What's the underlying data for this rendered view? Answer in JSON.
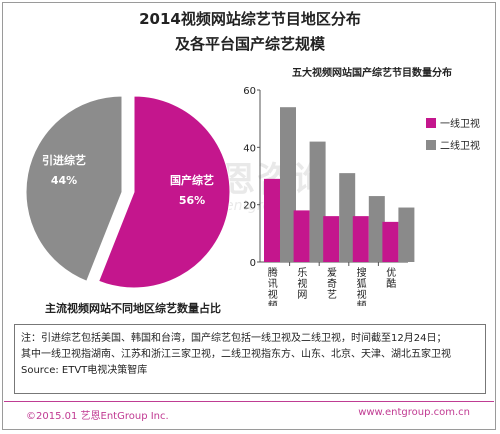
{
  "title_line1": "2014视频网站综艺节目地区分布",
  "title_line2": "及各平台国产综艺规模",
  "watermark": {
    "main": "艺恩咨询",
    "sub": "entgroup"
  },
  "colors": {
    "magenta": "#c4168d",
    "gray": "#8a8a8a",
    "pie_gray": "#8c8c8c",
    "brand": "#c03a92"
  },
  "chart_data": [
    {
      "type": "pie",
      "caption": "主流视频网站不同地区综艺数量占比",
      "slices": [
        {
          "name": "国产综艺",
          "percent": "56%",
          "value": 56,
          "color": "#c4168d"
        },
        {
          "name": "引进综艺",
          "percent": "44%",
          "value": 44,
          "color": "#8c8c8c"
        }
      ]
    },
    {
      "type": "bar",
      "title": "五大视频网站国产综艺节目数量分布",
      "categories": [
        "腾讯视频",
        "乐视网",
        "爱奇艺",
        "搜狐视频",
        "优酷"
      ],
      "series": [
        {
          "name": "一线卫视",
          "values": [
            29,
            18,
            16,
            16,
            14
          ],
          "color": "#c4168d"
        },
        {
          "name": "二线卫视",
          "values": [
            54,
            42,
            31,
            23,
            19
          ],
          "color": "#8a8a8a"
        }
      ],
      "yticks": [
        0,
        20,
        40,
        60
      ],
      "ylim": [
        0,
        60
      ],
      "legend": "right"
    }
  ],
  "notes": {
    "line1": "注：引进综艺包括美国、韩国和台湾，国产综艺包括一线卫视及二线卫视，时间截至12月24日；",
    "line2": "其中一线卫视指湖南、江苏和浙江三家卫视，二线卫视指东方、山东、北京、天津、湖北五家卫视",
    "line3": "Source: ETVT电视决策智库"
  },
  "footer": {
    "left": "©2015.01 艺恩EntGroup Inc.",
    "right": "www.entgroup.com.cn"
  }
}
